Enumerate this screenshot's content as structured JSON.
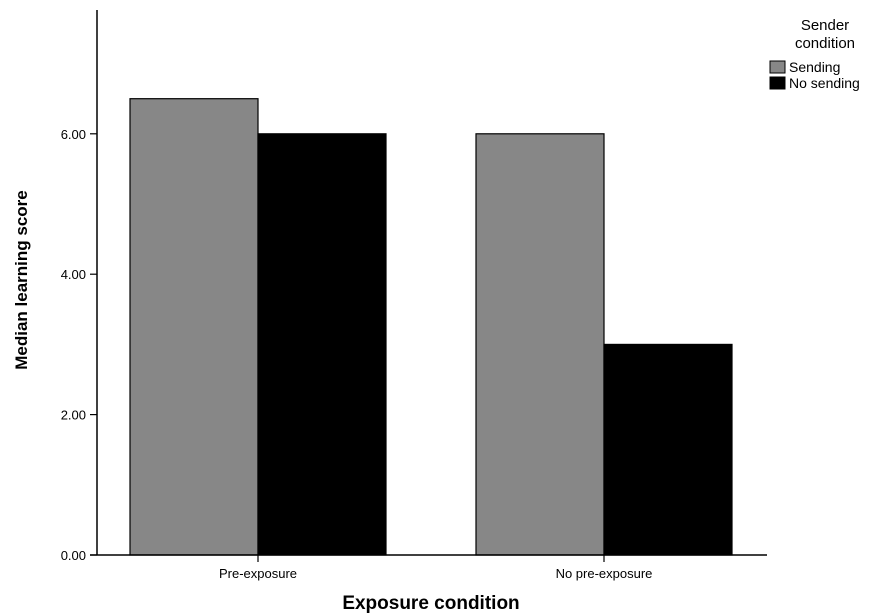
{
  "chart_data": {
    "type": "bar",
    "categories": [
      "Pre-exposure",
      "No pre-exposure"
    ],
    "series": [
      {
        "name": "Sending",
        "color": "#878787",
        "values": [
          6.5,
          6.0
        ]
      },
      {
        "name": "No sending",
        "color": "#000000",
        "values": [
          6.0,
          3.0
        ]
      }
    ],
    "xlabel": "Exposure condition",
    "ylabel": "Median learning score",
    "ylim": [
      0,
      7.8
    ],
    "yticks": [
      0,
      2,
      4,
      6
    ],
    "ytick_labels": [
      "0.00",
      "2.00",
      "4.00",
      "6.00"
    ],
    "grid": false,
    "legend": {
      "title_lines": [
        "Sender",
        "condition"
      ],
      "position": "top-right"
    }
  }
}
